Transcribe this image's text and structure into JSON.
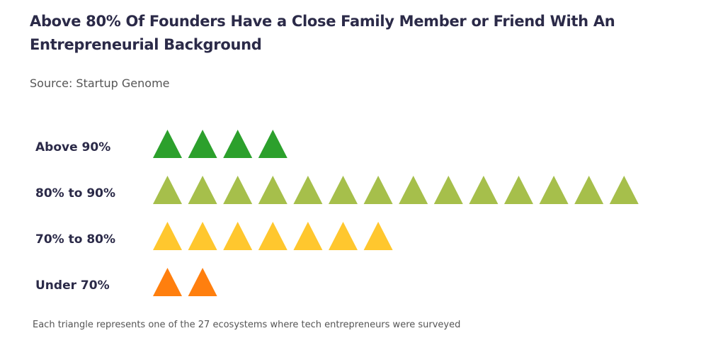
{
  "chart_data": {
    "type": "pictogram",
    "title": "Above 80% Of Founders Have a Close Family Member or Friend With An Entrepreneurial Background",
    "subtitle": "Source: Startup Genome",
    "icon": "triangle",
    "categories": [
      "Above 90%",
      "80% to 90%",
      "70% to 80%",
      "Under 70%"
    ],
    "values": [
      4,
      14,
      7,
      2
    ],
    "colors": [
      "#2ca02c",
      "#a6bf4b",
      "#ffc72e",
      "#ff7f0e"
    ],
    "note": "Each triangle represents one of the 27 ecosystems where tech entrepreneurs were surveyed"
  }
}
